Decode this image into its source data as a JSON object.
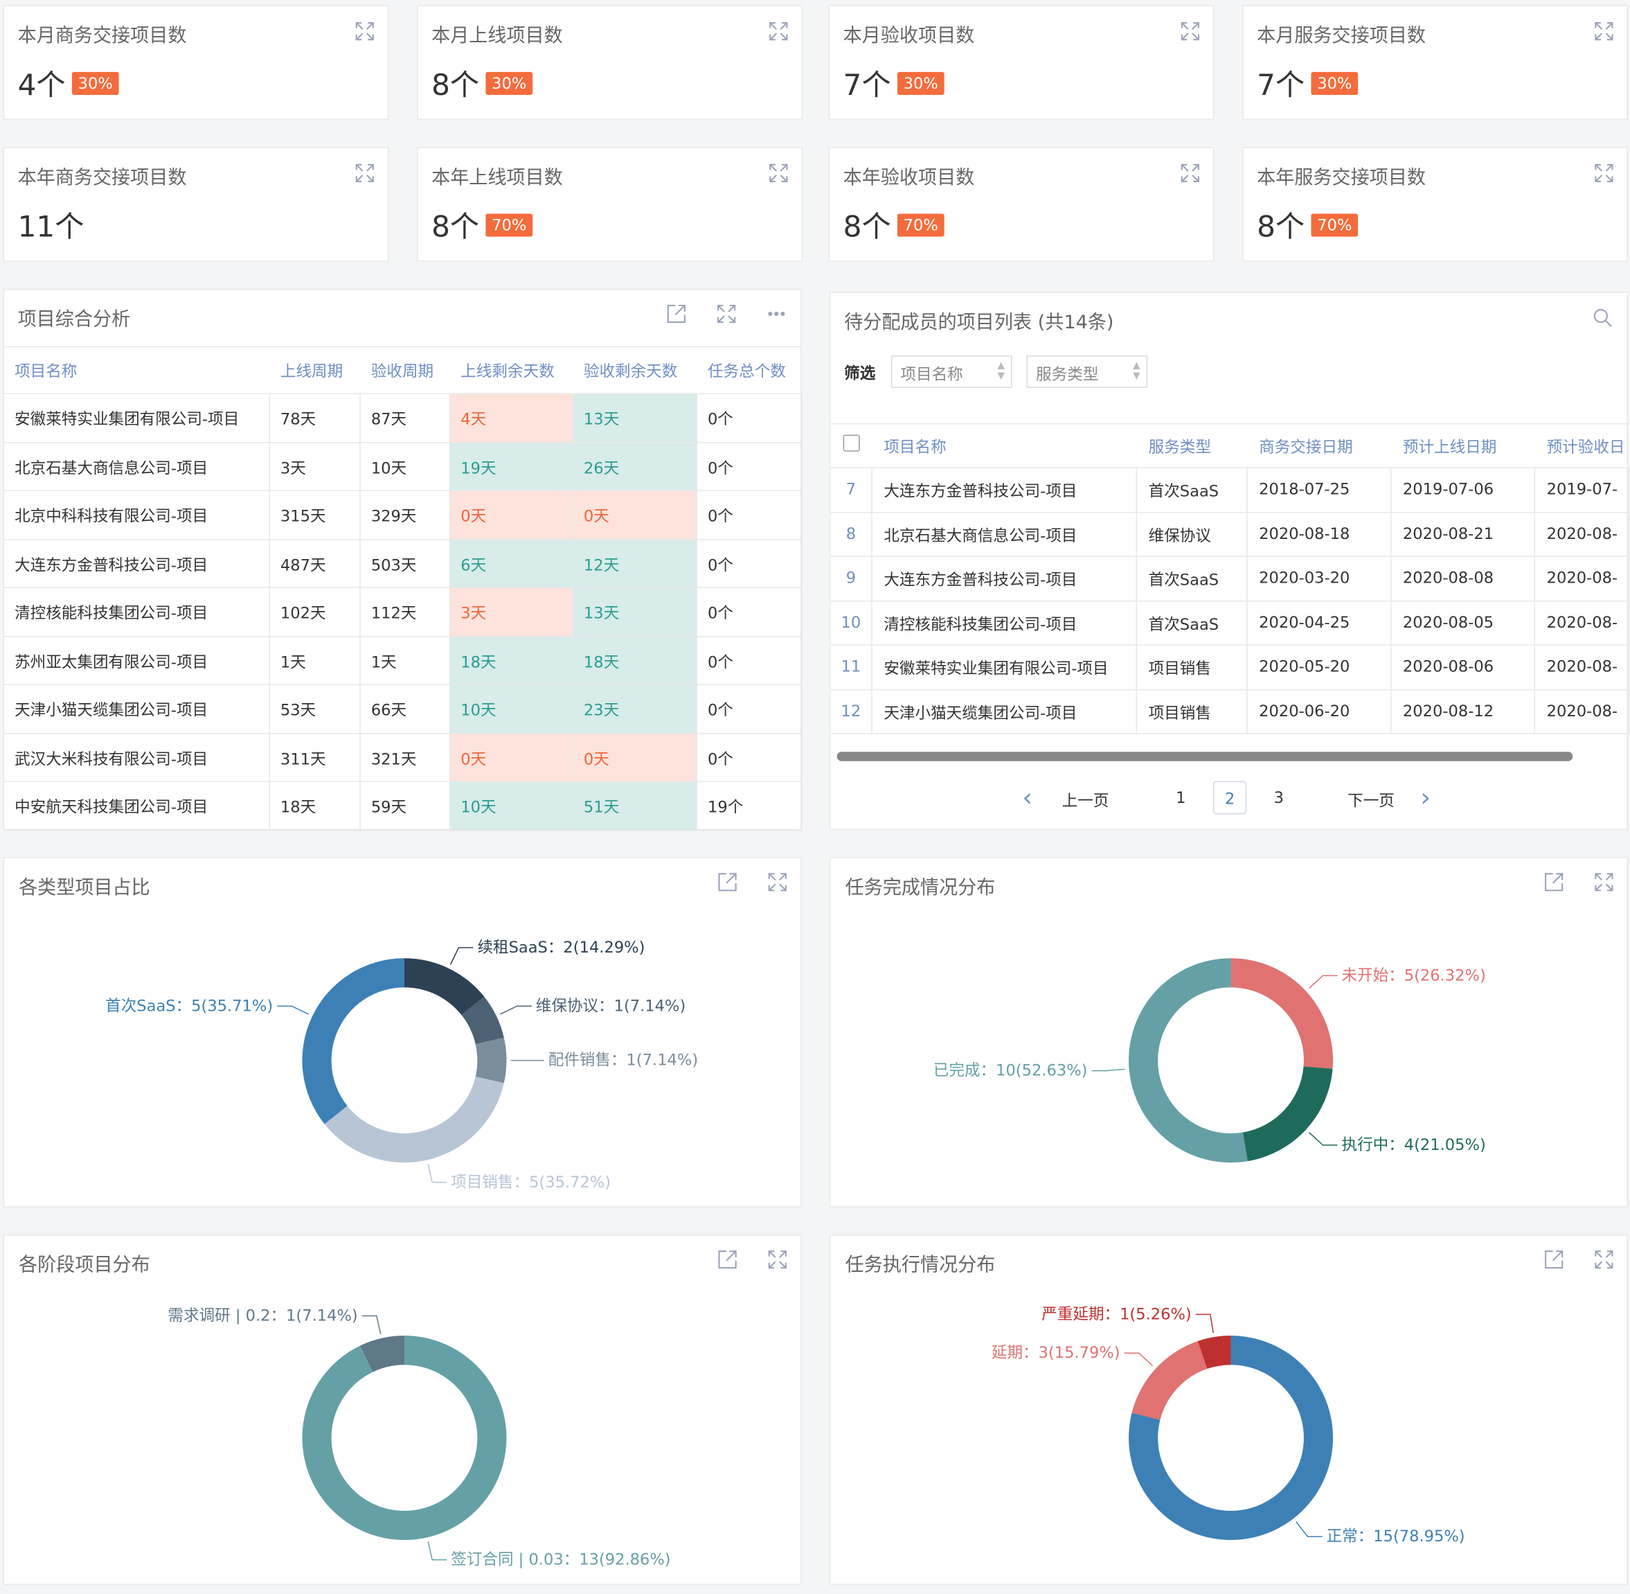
{
  "cards": [
    {
      "title": "本月商务交接项目数",
      "value": "4个",
      "badge": "30%"
    },
    {
      "title": "本月上线项目数",
      "value": "8个",
      "badge": "30%"
    },
    {
      "title": "本月验收项目数",
      "value": "7个",
      "badge": "30%"
    },
    {
      "title": "本月服务交接项目数",
      "value": "7个",
      "badge": "30%"
    },
    {
      "title": "本年商务交接项目数",
      "value": "11个"
    },
    {
      "title": "本年上线项目数",
      "value": "8个",
      "badge": "70%"
    },
    {
      "title": "本年验收项目数",
      "value": "8个",
      "badge": "70%"
    },
    {
      "title": "本年服务交接项目数",
      "value": "8个",
      "badge": "70%"
    }
  ],
  "analysis": {
    "title": "项目综合分析",
    "headers": [
      "项目名称",
      "上线周期",
      "验收周期",
      "上线剩余天数",
      "验收剩余天数",
      "任务总个数"
    ],
    "rows": [
      [
        "安徽莱特实业集团有限公司-项目",
        "78天",
        "87天",
        "4天",
        "13天",
        "0个"
      ],
      [
        "北京石基大商信息公司-项目",
        "3天",
        "10天",
        "19天",
        "26天",
        "0个"
      ],
      [
        "北京中科科技有限公司-项目",
        "315天",
        "329天",
        "0天",
        "0天",
        "0个"
      ],
      [
        "大连东方金普科技公司-项目",
        "487天",
        "503天",
        "6天",
        "12天",
        "0个"
      ],
      [
        "清控核能科技集团公司-项目",
        "102天",
        "112天",
        "3天",
        "13天",
        "0个"
      ],
      [
        "苏州亚太集团有限公司-项目",
        "1天",
        "1天",
        "18天",
        "18天",
        "0个"
      ],
      [
        "天津小猫天缆集团公司-项目",
        "53天",
        "66天",
        "10天",
        "23天",
        "0个"
      ],
      [
        "武汉大米科技有限公司-项目",
        "311天",
        "321天",
        "0天",
        "0天",
        "0个"
      ],
      [
        "中安航天科技集团公司-项目",
        "18天",
        "59天",
        "10天",
        "51天",
        "19个"
      ]
    ]
  },
  "project_list": {
    "title": "待分配成员的项目列表 (共14条)",
    "filter_label": "筛选",
    "filters": [
      "项目名称",
      "服务类型"
    ],
    "headers": [
      "项目名称",
      "服务类型",
      "商务交接日期",
      "预计上线日期",
      "预计验收日"
    ],
    "rows": [
      [
        "7",
        "大连东方金普科技公司-项目",
        "首次SaaS",
        "2018-07-25",
        "2019-07-06",
        "2019-07-"
      ],
      [
        "8",
        "北京石基大商信息公司-项目",
        "维保协议",
        "2020-08-18",
        "2020-08-21",
        "2020-08-"
      ],
      [
        "9",
        "大连东方金普科技公司-项目",
        "首次SaaS",
        "2020-03-20",
        "2020-08-08",
        "2020-08-"
      ],
      [
        "10",
        "清控核能科技集团公司-项目",
        "首次SaaS",
        "2020-04-25",
        "2020-08-05",
        "2020-08-"
      ],
      [
        "11",
        "安徽莱特实业集团有限公司-项目",
        "项目销售",
        "2020-05-20",
        "2020-08-06",
        "2020-08-"
      ],
      [
        "12",
        "天津小猫天缆集团公司-项目",
        "项目销售",
        "2020-06-20",
        "2020-08-12",
        "2020-08-"
      ]
    ],
    "pagination": {
      "prev": "上一页",
      "pages": [
        "1",
        "2",
        "3"
      ],
      "current": "2",
      "next": "下一页"
    }
  },
  "chart_data": [
    {
      "type": "pie",
      "title": "各类型项目占比",
      "label_separator": "：",
      "categories": [
        "续租SaaS",
        "维保协议",
        "配件销售",
        "项目销售",
        "首次SaaS"
      ],
      "values": [
        2,
        1,
        1,
        5,
        5
      ],
      "value_labels": [
        "2(14.29%)",
        "1(7.14%)",
        "1(7.14%)",
        "5(35.72%)",
        "5(35.71%)"
      ],
      "colors": [
        "#2d4154",
        "#4c6173",
        "#7b8c9b",
        "#b8c5d5",
        "#3d80b6"
      ]
    },
    {
      "type": "pie",
      "title": "任务完成情况分布",
      "label_separator": "：",
      "categories": [
        "未开始",
        "执行中",
        "已完成"
      ],
      "values": [
        5,
        4,
        10
      ],
      "value_labels": [
        "5(26.32%)",
        "4(21.05%)",
        "10(52.63%)"
      ],
      "colors": [
        "#e07272",
        "#1f6b5b",
        "#65a0a6"
      ]
    },
    {
      "type": "pie",
      "title": "各阶段项目分布",
      "label_separator": "：",
      "categories": [
        "签订合同 | 0.03",
        "需求调研 | 0.2"
      ],
      "values": [
        13,
        1
      ],
      "value_labels": [
        "13(92.86%)",
        "1(7.14%)"
      ],
      "colors": [
        "#65a0a6",
        "#5f7888"
      ]
    },
    {
      "type": "pie",
      "title": "任务执行情况分布",
      "label_separator": "：",
      "categories": [
        "正常",
        "延期",
        "严重延期"
      ],
      "values": [
        15,
        3,
        1
      ],
      "value_labels": [
        "15(78.95%)",
        "3(15.79%)",
        "1(5.26%)"
      ],
      "colors": [
        "#3d80b6",
        "#e07272",
        "#be3030"
      ]
    }
  ]
}
